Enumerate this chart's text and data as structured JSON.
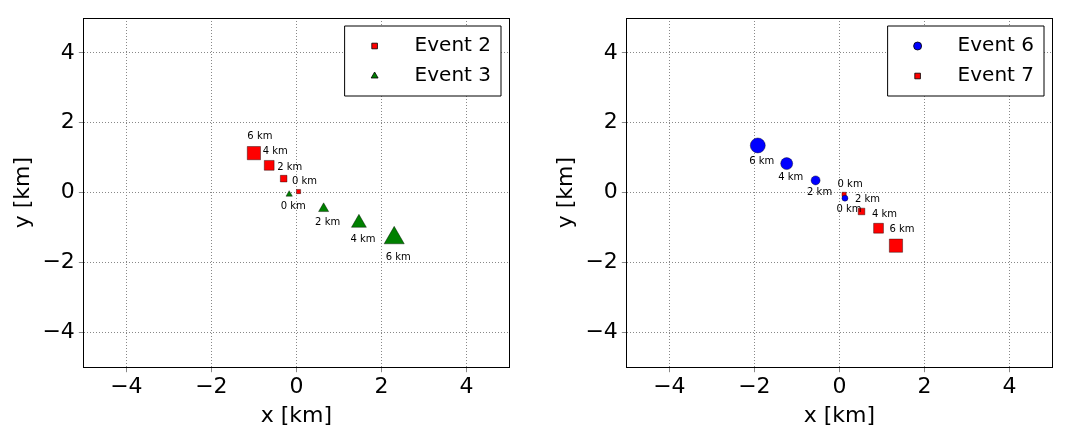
{
  "chart_data": [
    {
      "type": "bubble",
      "xlabel": "x [km]",
      "ylabel": "y [km]",
      "xlim": [
        -5,
        5
      ],
      "ylim": [
        -5,
        5
      ],
      "xticks": [
        -4,
        -2,
        0,
        2,
        4
      ],
      "yticks": [
        -4,
        -2,
        0,
        2,
        4
      ],
      "grid": true,
      "legend": "top right",
      "series": [
        {
          "name": "Event 2",
          "color": "#ff0000",
          "marker": "square",
          "x": [
            0.05,
            -0.3,
            -0.64,
            -1.0
          ],
          "values": [
            0.03,
            0.4,
            0.78,
            1.13
          ],
          "sizes": [
            0.1,
            0.25,
            0.55,
            1
          ]
        },
        {
          "name": "Event 3",
          "color": "#008000",
          "marker": "triangle",
          "x": [
            -0.17,
            0.64,
            1.47,
            2.3
          ],
          "values": [
            -0.05,
            -0.46,
            -0.87,
            -1.3
          ],
          "sizes": [
            0.1,
            0.25,
            0.55,
            1
          ]
        }
      ],
      "annotations": [
        {
          "text": "6 km",
          "x": -1.0,
          "y": 1.13
        },
        {
          "text": "4 km",
          "x": -0.64,
          "y": 0.78
        },
        {
          "text": "2 km",
          "x": -0.3,
          "y": 0.4
        },
        {
          "text": "0 km",
          "x": 0.05,
          "y": 0.03
        },
        {
          "text": "0 km",
          "x": -0.17,
          "y": -0.05
        },
        {
          "text": "2 km",
          "x": 0.64,
          "y": -0.46
        },
        {
          "text": "4 km",
          "x": 1.47,
          "y": -0.87
        },
        {
          "text": "6 km",
          "x": 2.3,
          "y": -1.3
        }
      ]
    },
    {
      "type": "bubble",
      "xlabel": "x [km]",
      "ylabel": "y [km]",
      "xlim": [
        -5,
        5
      ],
      "ylim": [
        -5,
        5
      ],
      "xticks": [
        -4,
        -2,
        0,
        2,
        4
      ],
      "yticks": [
        -4,
        -2,
        0,
        2,
        4
      ],
      "grid": true,
      "legend": "top right",
      "series": [
        {
          "name": "Event 6",
          "color": "#0000ff",
          "marker": "circle",
          "x": [
            0.13,
            -0.56,
            -1.24,
            -1.92
          ],
          "values": [
            -0.16,
            0.35,
            0.83,
            1.35
          ],
          "sizes": [
            0.16,
            0.36,
            0.64,
            1
          ]
        },
        {
          "name": "Event 7",
          "color": "#ff0000",
          "marker": "square",
          "x": [
            0.11,
            0.52,
            0.92,
            1.33
          ],
          "values": [
            -0.05,
            -0.54,
            -1.02,
            -1.52
          ],
          "sizes": [
            0.1,
            0.25,
            0.55,
            1
          ]
        }
      ],
      "annotations": [
        {
          "text": "6 km",
          "x": -1.92,
          "y": 1.35
        },
        {
          "text": "4 km",
          "x": -1.24,
          "y": 0.83
        },
        {
          "text": "2 km",
          "x": -0.56,
          "y": 0.35
        },
        {
          "text": "0 km",
          "x": 0.13,
          "y": -0.16
        },
        {
          "text": "0 km",
          "x": 0.11,
          "y": -0.05
        },
        {
          "text": "2 km",
          "x": 0.52,
          "y": -0.54
        },
        {
          "text": "4 km",
          "x": 0.92,
          "y": -1.02
        },
        {
          "text": "6 km",
          "x": 1.33,
          "y": -1.52
        }
      ]
    }
  ]
}
